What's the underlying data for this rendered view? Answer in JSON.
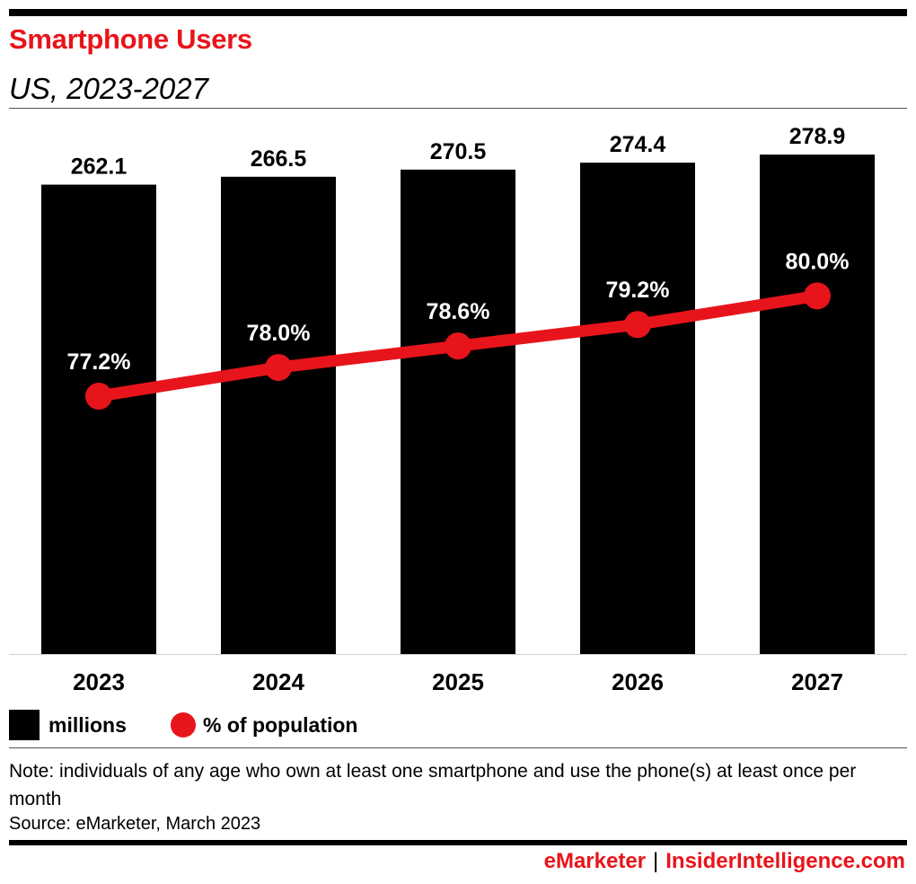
{
  "header": {
    "title": "Smartphone Users",
    "subtitle": "US, 2023-2027"
  },
  "chart_data": {
    "type": "bar",
    "categories": [
      "2023",
      "2024",
      "2025",
      "2026",
      "2027"
    ],
    "series": [
      {
        "name": "millions",
        "type": "bar",
        "values": [
          262.1,
          266.5,
          270.5,
          274.4,
          278.9
        ],
        "labels": [
          "262.1",
          "266.5",
          "270.5",
          "274.4",
          "278.9"
        ],
        "color": "#000000"
      },
      {
        "name": "% of population",
        "type": "line",
        "values": [
          77.2,
          78.0,
          78.6,
          79.2,
          80.0
        ],
        "labels": [
          "77.2%",
          "78.0%",
          "78.6%",
          "79.2%",
          "80.0%"
        ],
        "color": "#e8141b"
      }
    ],
    "ylim_bars": [
      0,
      300
    ],
    "ylim_line": [
      70,
      85
    ],
    "grid": false,
    "legend_position": "bottom-left"
  },
  "legend": {
    "bars_label": "millions",
    "line_label": "% of population"
  },
  "notes": {
    "note": "Note: individuals of any age who own at least one smartphone and use the phone(s) at least once per month",
    "source": "Source: eMarketer, March 2023"
  },
  "footer": {
    "brand_left": "eMarketer",
    "separator": "|",
    "brand_right": "InsiderIntelligence.com"
  },
  "colors": {
    "accent": "#e8141b",
    "bar": "#000000"
  }
}
